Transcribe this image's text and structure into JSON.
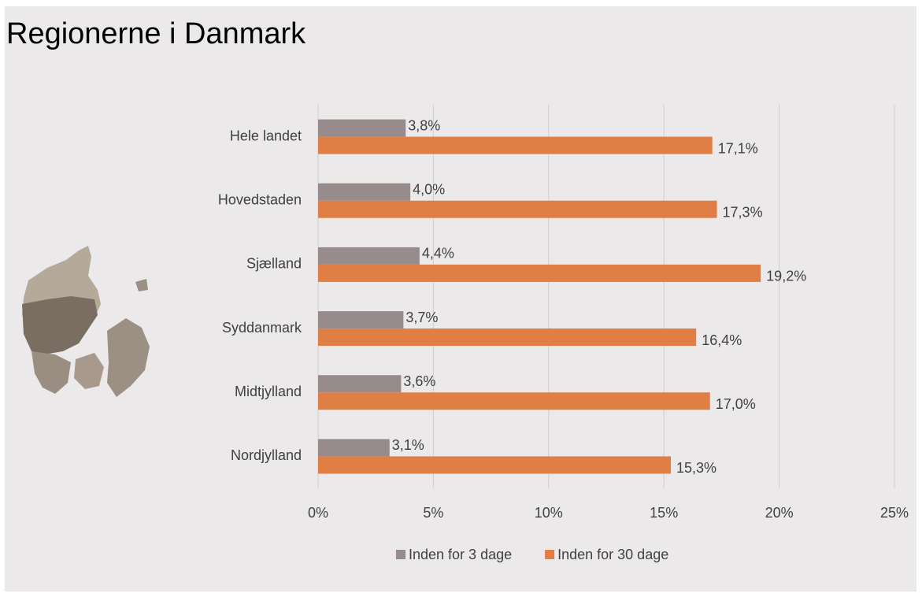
{
  "chart_data": {
    "type": "hbar",
    "title": "Regionerne i Danmark",
    "categories": [
      "Hele landet",
      "Hovedstaden",
      "Sjælland",
      "Syddanmark",
      "Midtjylland",
      "Nordjylland"
    ],
    "series": [
      {
        "name": "Inden for 3 dage",
        "color": "#978c8b",
        "values": [
          3.8,
          4.0,
          4.4,
          3.7,
          3.6,
          3.1
        ],
        "value_labels": [
          "3,8%",
          "4,0%",
          "4,4%",
          "3,7%",
          "3,6%",
          "3,1%"
        ]
      },
      {
        "name": "Inden for 30 dage",
        "color": "#e07f45",
        "values": [
          17.1,
          17.3,
          19.2,
          16.4,
          17.0,
          15.3
        ],
        "value_labels": [
          "17,1%",
          "17,3%",
          "19,2%",
          "16,4%",
          "17,0%",
          "15,3%"
        ]
      }
    ],
    "xlim": [
      0,
      25
    ],
    "xticks": [
      {
        "value": 0,
        "label": "0%"
      },
      {
        "value": 5,
        "label": "5%"
      },
      {
        "value": 10,
        "label": "10%"
      },
      {
        "value": 15,
        "label": "15%"
      },
      {
        "value": 20,
        "label": "20%"
      },
      {
        "value": 25,
        "label": "25%"
      }
    ],
    "grid": true,
    "legend": "bottom"
  }
}
